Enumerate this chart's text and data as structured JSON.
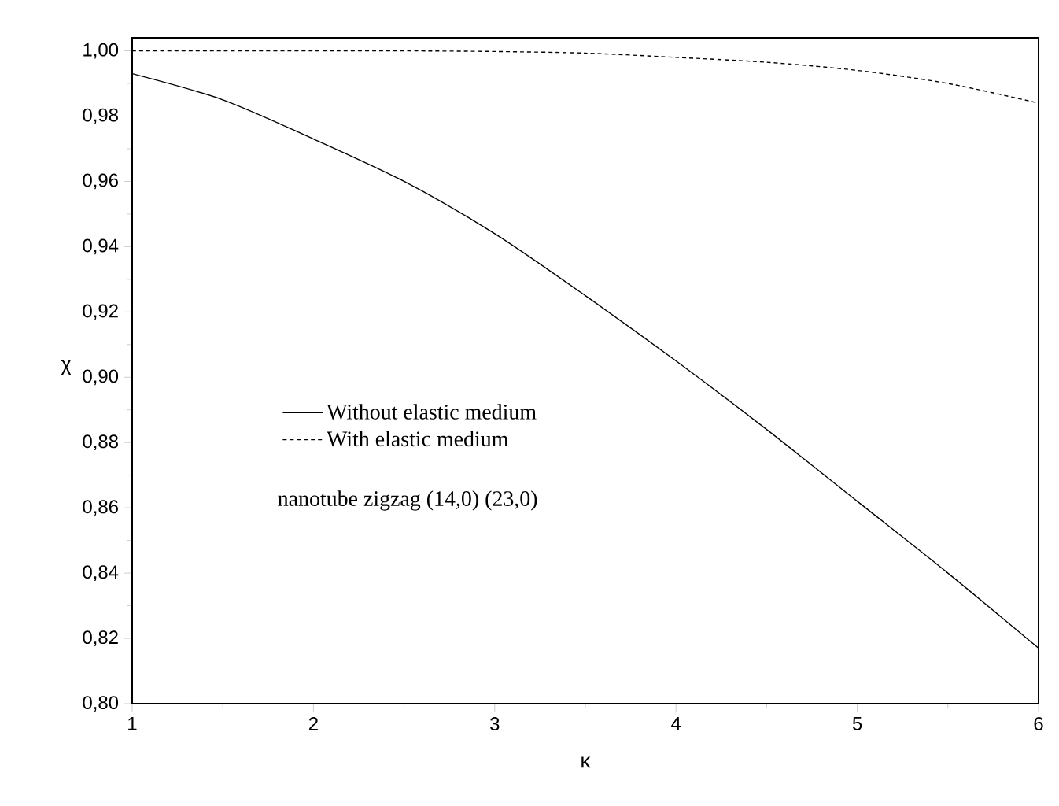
{
  "chart_data": {
    "type": "line",
    "xlabel": "κ",
    "ylabel": "χ",
    "xlim": [
      1,
      6
    ],
    "ylim": [
      0.8,
      1.004
    ],
    "xticks": [
      1,
      2,
      3,
      4,
      5,
      6
    ],
    "yticks": [
      {
        "value": 0.8,
        "label": "0,80"
      },
      {
        "value": 0.82,
        "label": "0,82"
      },
      {
        "value": 0.84,
        "label": "0,84"
      },
      {
        "value": 0.86,
        "label": "0,86"
      },
      {
        "value": 0.88,
        "label": "0,88"
      },
      {
        "value": 0.9,
        "label": "0,90"
      },
      {
        "value": 0.92,
        "label": "0,92"
      },
      {
        "value": 0.94,
        "label": "0,94"
      },
      {
        "value": 0.96,
        "label": "0,96"
      },
      {
        "value": 0.98,
        "label": "0,98"
      },
      {
        "value": 1.0,
        "label": "1,00"
      }
    ],
    "x": [
      1,
      1.5,
      2,
      2.5,
      3,
      3.5,
      4,
      4.5,
      5,
      5.5,
      6
    ],
    "series": [
      {
        "name": "Without elastic medium",
        "color": "#000000",
        "line_style": "solid",
        "values": [
          0.993,
          0.985,
          0.973,
          0.96,
          0.944,
          0.925,
          0.905,
          0.884,
          0.862,
          0.84,
          0.817
        ]
      },
      {
        "name": "With elastic medium",
        "color": "#000000",
        "line_style": "dashed",
        "values": [
          1.0,
          1.0,
          1.0,
          1.0,
          0.9998,
          0.9993,
          0.998,
          0.9965,
          0.994,
          0.99,
          0.984
        ]
      }
    ],
    "legend": "left",
    "grid": false,
    "marker": "none",
    "annotations": [
      "nanotube zigzag (14,0) (23,0)"
    ]
  }
}
